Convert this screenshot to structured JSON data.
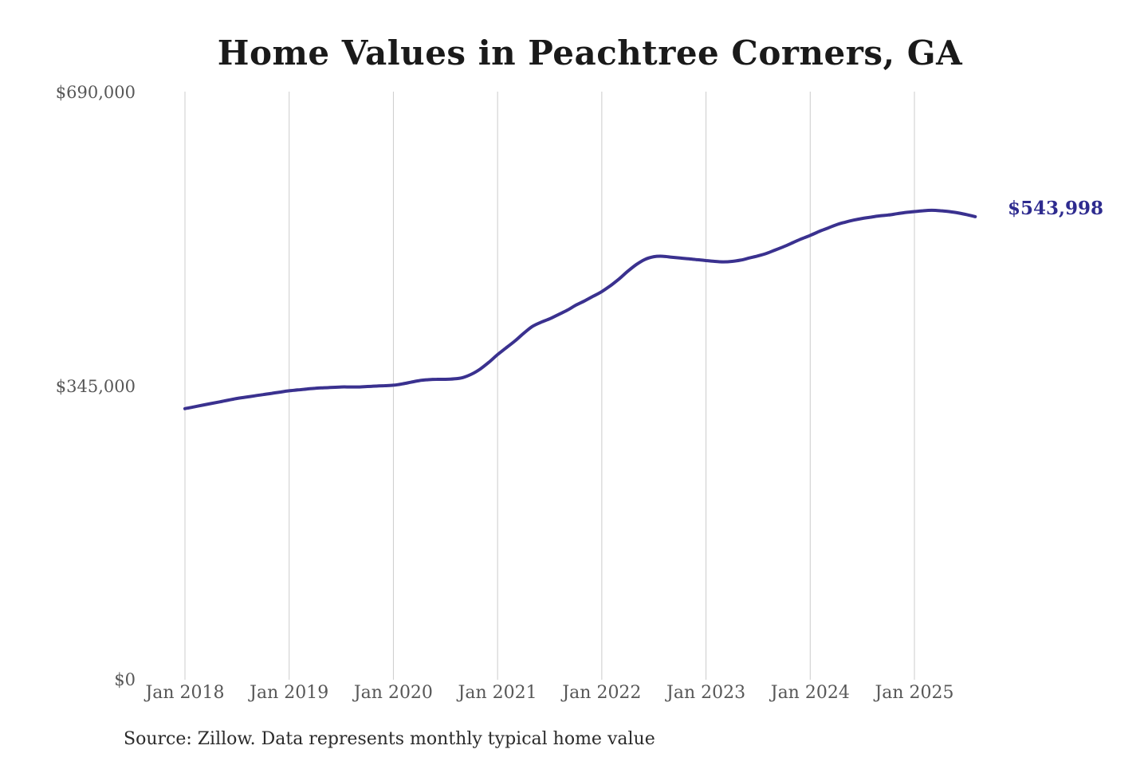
{
  "title": "Home Values in Peachtree Corners, GA",
  "source_note": "Source: Zillow. Data represents monthly typical home value",
  "latest_value_label": "$543,998",
  "colors": {
    "line": "#3a318f",
    "end_label": "#2e2b8f",
    "grid": "#cccccc",
    "axis_text": "#575757",
    "title_text": "#1a1a1a",
    "source_text": "#2b2b2b",
    "background": "#ffffff"
  },
  "y_axis": {
    "ticks": [
      {
        "label": "$0",
        "value": 0
      },
      {
        "label": "$345,000",
        "value": 345000
      },
      {
        "label": "$690,000",
        "value": 690000
      }
    ]
  },
  "x_axis": {
    "tick_labels": [
      "Jan 2018",
      "Jan 2019",
      "Jan 2020",
      "Jan 2021",
      "Jan 2022",
      "Jan 2023",
      "Jan 2024",
      "Jan 2025"
    ]
  },
  "chart_data": {
    "type": "line",
    "title": "Home Values in Peachtree Corners, GA",
    "series_name": "Monthly typical home value",
    "xlabel": "",
    "ylabel": "",
    "ylim": [
      0,
      690000
    ],
    "y_ticks": [
      0,
      345000,
      690000
    ],
    "x_tick_labels": [
      "Jan 2018",
      "Jan 2019",
      "Jan 2020",
      "Jan 2021",
      "Jan 2022",
      "Jan 2023",
      "Jan 2024",
      "Jan 2025"
    ],
    "grid": "vertical-only",
    "legend": "none",
    "line_color": "#3a318f",
    "end_value": 543998,
    "end_label": "$543,998",
    "source": "Source: Zillow. Data represents monthly typical home value",
    "x": [
      "2018-01",
      "2018-02",
      "2018-03",
      "2018-04",
      "2018-05",
      "2018-06",
      "2018-07",
      "2018-08",
      "2018-09",
      "2018-10",
      "2018-11",
      "2018-12",
      "2019-01",
      "2019-02",
      "2019-03",
      "2019-04",
      "2019-05",
      "2019-06",
      "2019-07",
      "2019-08",
      "2019-09",
      "2019-10",
      "2019-11",
      "2019-12",
      "2020-01",
      "2020-02",
      "2020-03",
      "2020-04",
      "2020-05",
      "2020-06",
      "2020-07",
      "2020-08",
      "2020-09",
      "2020-10",
      "2020-11",
      "2020-12",
      "2021-01",
      "2021-02",
      "2021-03",
      "2021-04",
      "2021-05",
      "2021-06",
      "2021-07",
      "2021-08",
      "2021-09",
      "2021-10",
      "2021-11",
      "2021-12",
      "2022-01",
      "2022-02",
      "2022-03",
      "2022-04",
      "2022-05",
      "2022-06",
      "2022-07",
      "2022-08",
      "2022-09",
      "2022-10",
      "2022-11",
      "2022-12",
      "2023-01",
      "2023-02",
      "2023-03",
      "2023-04",
      "2023-05",
      "2023-06",
      "2023-07",
      "2023-08",
      "2023-09",
      "2023-10",
      "2023-11",
      "2023-12",
      "2024-01",
      "2024-02",
      "2024-03",
      "2024-04",
      "2024-05",
      "2024-06",
      "2024-07",
      "2024-08",
      "2024-09",
      "2024-10",
      "2024-11",
      "2024-12",
      "2025-01",
      "2025-02",
      "2025-03",
      "2025-04",
      "2025-05",
      "2025-06",
      "2025-07",
      "2025-08"
    ],
    "values": [
      318500,
      320500,
      322500,
      324500,
      326500,
      328500,
      330500,
      332000,
      333500,
      335000,
      336500,
      338000,
      339500,
      340500,
      341500,
      342500,
      343000,
      343500,
      344000,
      344000,
      344000,
      344500,
      345000,
      345500,
      346000,
      347500,
      349500,
      351500,
      352500,
      353000,
      353000,
      353500,
      355000,
      359000,
      365000,
      373000,
      382000,
      390000,
      398000,
      407000,
      415000,
      420000,
      424000,
      429000,
      434000,
      440000,
      445000,
      450500,
      456000,
      463000,
      471000,
      480000,
      488000,
      494000,
      497000,
      497500,
      496500,
      495500,
      494500,
      493500,
      492500,
      491500,
      491000,
      491500,
      493000,
      495500,
      498000,
      501000,
      505000,
      509000,
      513500,
      518000,
      522000,
      526500,
      530500,
      534500,
      537500,
      540000,
      542000,
      543500,
      545000,
      546000,
      547500,
      549000,
      550000,
      551000,
      551500,
      551000,
      550000,
      548500,
      546500,
      543998
    ]
  }
}
